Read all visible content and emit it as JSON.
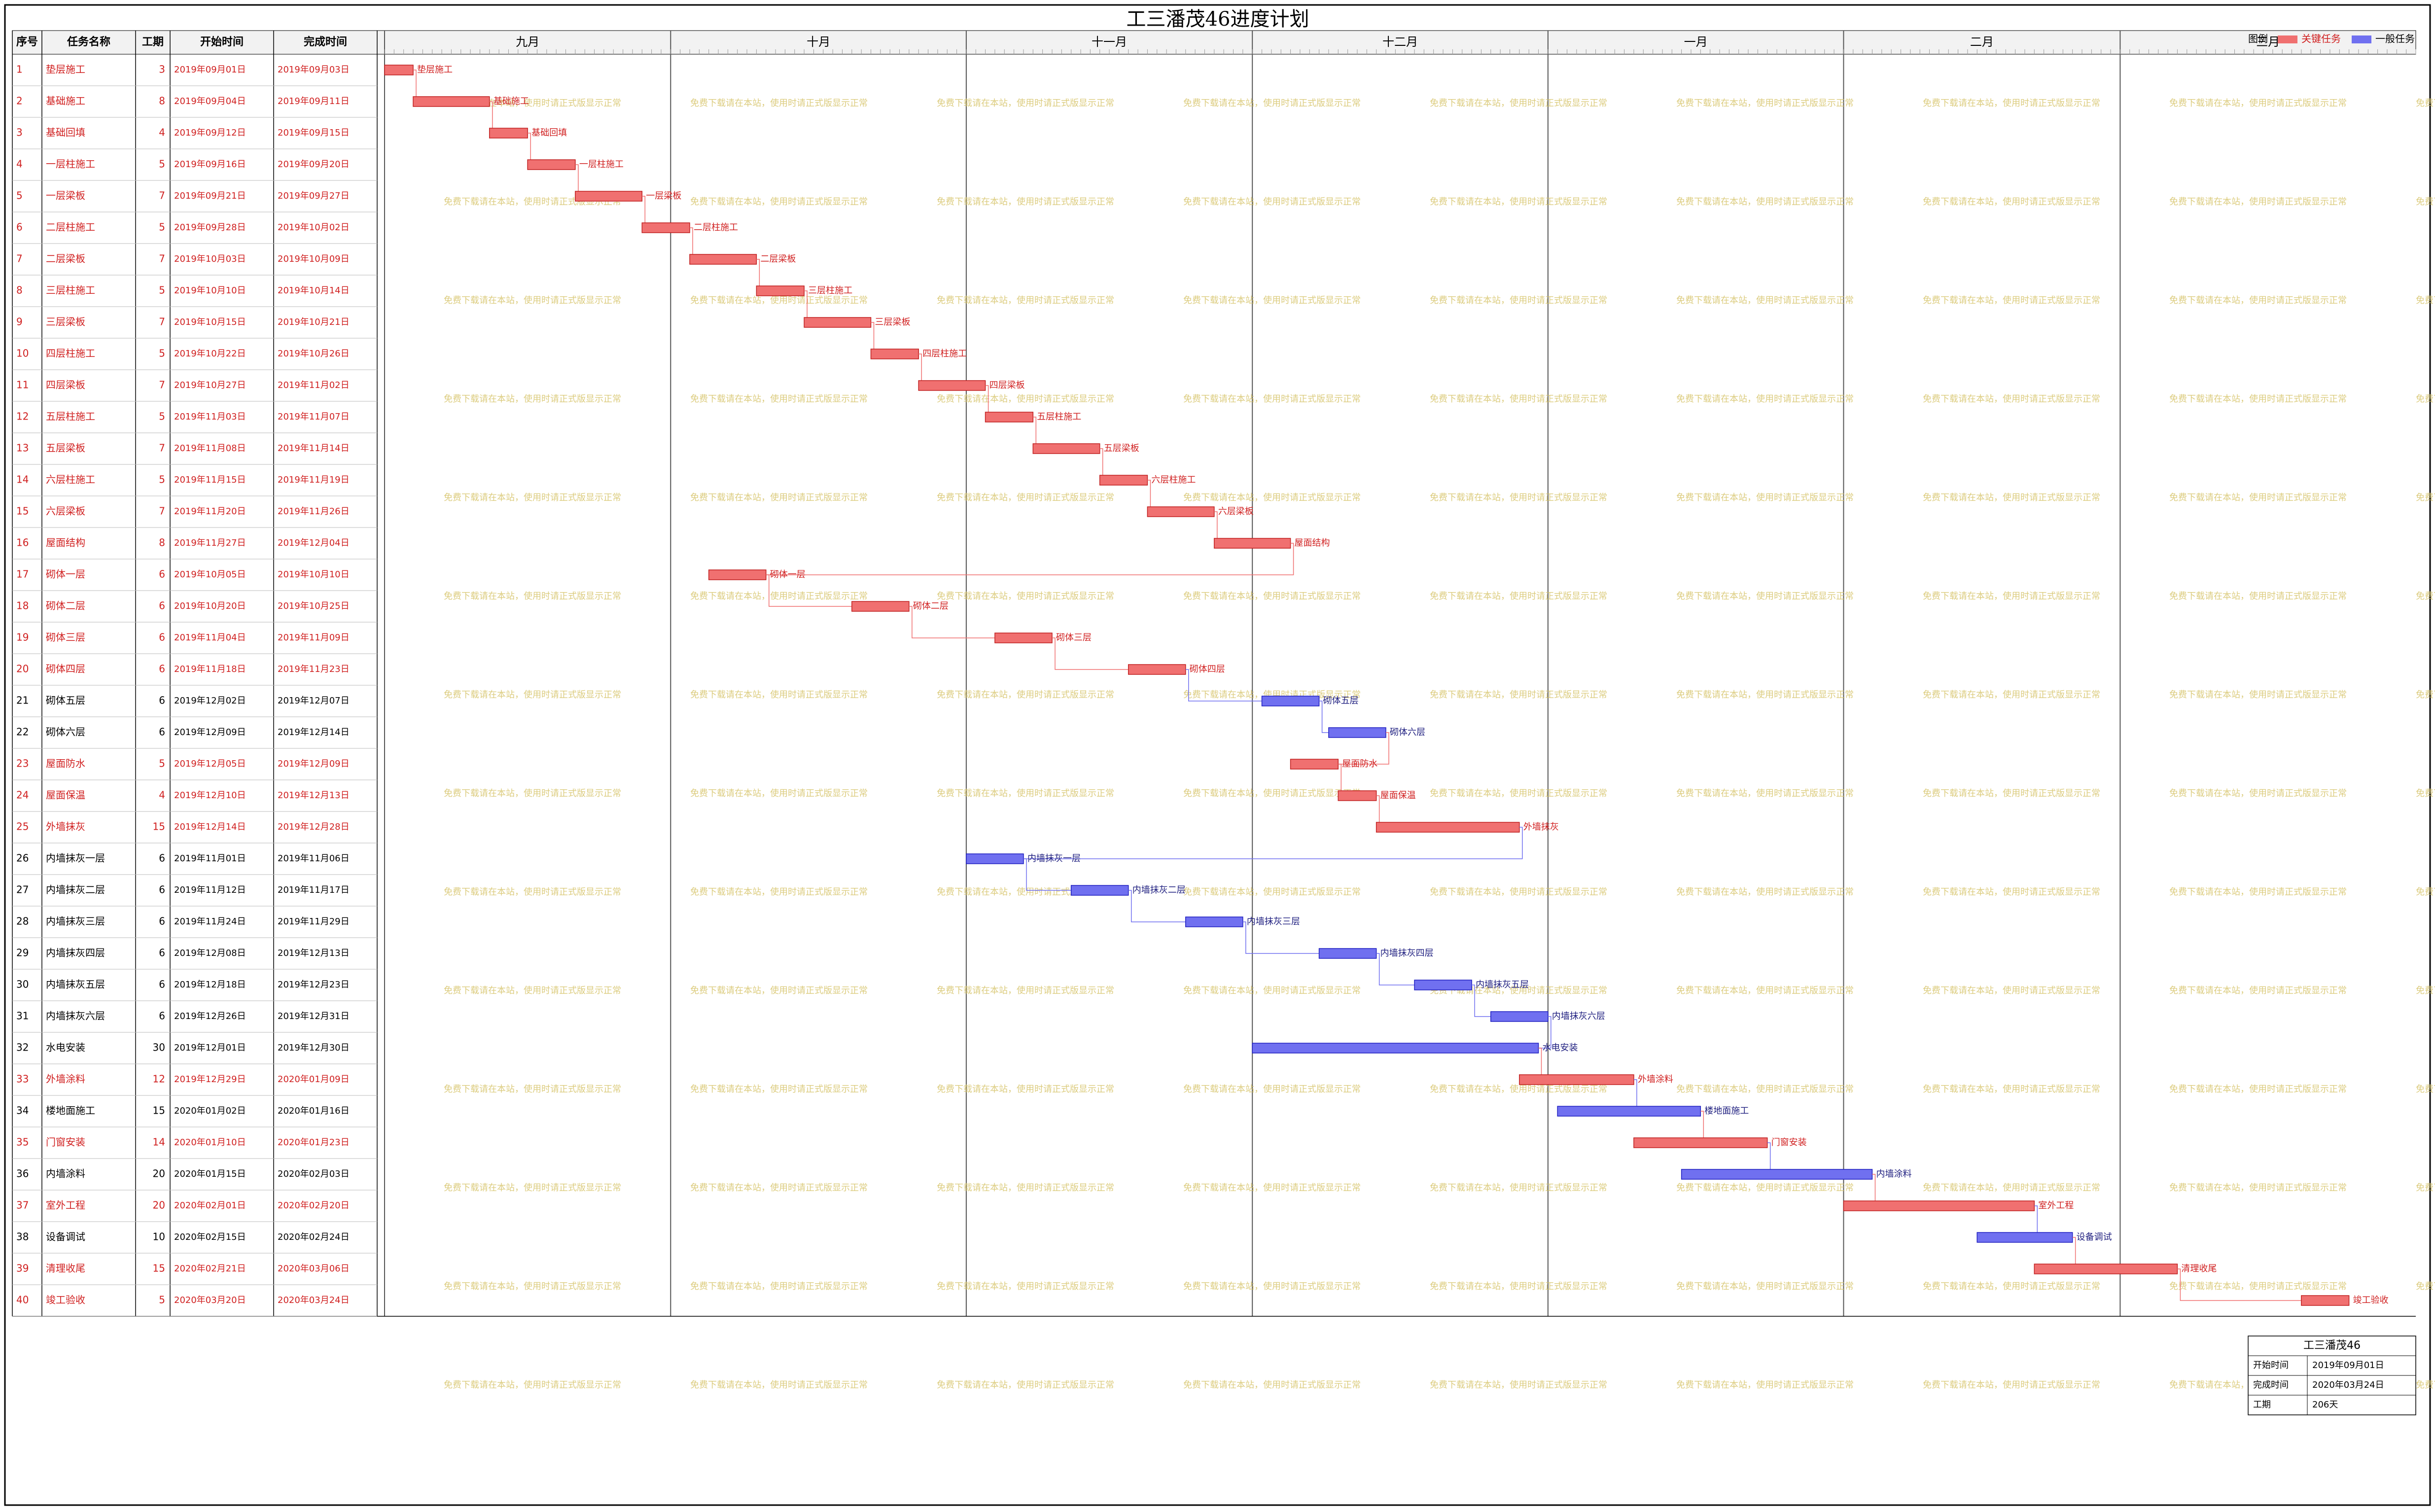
{
  "header": {
    "title": "工三潘茂46进度计划"
  },
  "table": {
    "columns": [
      "序号",
      "任务名称",
      "工期",
      "开始时间",
      "完成时间"
    ]
  },
  "months": [
    "九月",
    "十月",
    "十一月",
    "十二月",
    "一月",
    "二月",
    "三月"
  ],
  "tasks": [
    {
      "id": 1,
      "name": "垫层施工",
      "duration": 3,
      "start": "2019年09月01日",
      "end": "2019年09月03日",
      "critical": true
    },
    {
      "id": 2,
      "name": "基础施工",
      "duration": 8,
      "start": "2019年09月04日",
      "end": "2019年09月11日",
      "critical": true
    },
    {
      "id": 3,
      "name": "基础回填",
      "duration": 4,
      "start": "2019年09月12日",
      "end": "2019年09月15日",
      "critical": true
    },
    {
      "id": 4,
      "name": "一层柱施工",
      "duration": 5,
      "start": "2019年09月16日",
      "end": "2019年09月20日",
      "critical": true
    },
    {
      "id": 5,
      "name": "一层梁板",
      "duration": 7,
      "start": "2019年09月21日",
      "end": "2019年09月27日",
      "critical": true
    },
    {
      "id": 6,
      "name": "二层柱施工",
      "duration": 5,
      "start": "2019年09月28日",
      "end": "2019年10月02日",
      "critical": true
    },
    {
      "id": 7,
      "name": "二层梁板",
      "duration": 7,
      "start": "2019年10月03日",
      "end": "2019年10月09日",
      "critical": true
    },
    {
      "id": 8,
      "name": "三层柱施工",
      "duration": 5,
      "start": "2019年10月10日",
      "end": "2019年10月14日",
      "critical": true
    },
    {
      "id": 9,
      "name": "三层梁板",
      "duration": 7,
      "start": "2019年10月15日",
      "end": "2019年10月21日",
      "critical": true
    },
    {
      "id": 10,
      "name": "四层柱施工",
      "duration": 5,
      "start": "2019年10月22日",
      "end": "2019年10月26日",
      "critical": true
    },
    {
      "id": 11,
      "name": "四层梁板",
      "duration": 7,
      "start": "2019年10月27日",
      "end": "2019年11月02日",
      "critical": true
    },
    {
      "id": 12,
      "name": "五层柱施工",
      "duration": 5,
      "start": "2019年11月03日",
      "end": "2019年11月07日",
      "critical": true
    },
    {
      "id": 13,
      "name": "五层梁板",
      "duration": 7,
      "start": "2019年11月08日",
      "end": "2019年11月14日",
      "critical": true
    },
    {
      "id": 14,
      "name": "六层柱施工",
      "duration": 5,
      "start": "2019年11月15日",
      "end": "2019年11月19日",
      "critical": true
    },
    {
      "id": 15,
      "name": "六层梁板",
      "duration": 7,
      "start": "2019年11月20日",
      "end": "2019年11月26日",
      "critical": true
    },
    {
      "id": 16,
      "name": "屋面结构",
      "duration": 8,
      "start": "2019年11月27日",
      "end": "2019年12月04日",
      "critical": true
    },
    {
      "id": 17,
      "name": "砌体一层",
      "duration": 6,
      "start": "2019年10月05日",
      "end": "2019年10月10日",
      "critical": true
    },
    {
      "id": 18,
      "name": "砌体二层",
      "duration": 6,
      "start": "2019年10月20日",
      "end": "2019年10月25日",
      "critical": true
    },
    {
      "id": 19,
      "name": "砌体三层",
      "duration": 6,
      "start": "2019年11月04日",
      "end": "2019年11月09日",
      "critical": true
    },
    {
      "id": 20,
      "name": "砌体四层",
      "duration": 6,
      "start": "2019年11月18日",
      "end": "2019年11月23日",
      "critical": true
    },
    {
      "id": 21,
      "name": "砌体五层",
      "duration": 6,
      "start": "2019年12月02日",
      "end": "2019年12月07日",
      "critical": false
    },
    {
      "id": 22,
      "name": "砌体六层",
      "duration": 6,
      "start": "2019年12月09日",
      "end": "2019年12月14日",
      "critical": false
    },
    {
      "id": 23,
      "name": "屋面防水",
      "duration": 5,
      "start": "2019年12月05日",
      "end": "2019年12月09日",
      "critical": true
    },
    {
      "id": 24,
      "name": "屋面保温",
      "duration": 4,
      "start": "2019年12月10日",
      "end": "2019年12月13日",
      "critical": true
    },
    {
      "id": 25,
      "name": "外墙抹灰",
      "duration": 15,
      "start": "2019年12月14日",
      "end": "2019年12月28日",
      "critical": true
    },
    {
      "id": 26,
      "name": "内墙抹灰一层",
      "duration": 6,
      "start": "2019年11月01日",
      "end": "2019年11月06日",
      "critical": false
    },
    {
      "id": 27,
      "name": "内墙抹灰二层",
      "duration": 6,
      "start": "2019年11月12日",
      "end": "2019年11月17日",
      "critical": false
    },
    {
      "id": 28,
      "name": "内墙抹灰三层",
      "duration": 6,
      "start": "2019年11月24日",
      "end": "2019年11月29日",
      "critical": false
    },
    {
      "id": 29,
      "name": "内墙抹灰四层",
      "duration": 6,
      "start": "2019年12月08日",
      "end": "2019年12月13日",
      "critical": false
    },
    {
      "id": 30,
      "name": "内墙抹灰五层",
      "duration": 6,
      "start": "2019年12月18日",
      "end": "2019年12月23日",
      "critical": false
    },
    {
      "id": 31,
      "name": "内墙抹灰六层",
      "duration": 6,
      "start": "2019年12月26日",
      "end": "2019年12月31日",
      "critical": false
    },
    {
      "id": 32,
      "name": "水电安装",
      "duration": 30,
      "start": "2019年12月01日",
      "end": "2019年12月30日",
      "critical": false
    },
    {
      "id": 33,
      "name": "外墙涂料",
      "duration": 12,
      "start": "2019年12月29日",
      "end": "2020年01月09日",
      "critical": true
    },
    {
      "id": 34,
      "name": "楼地面施工",
      "duration": 15,
      "start": "2020年01月02日",
      "end": "2020年01月16日",
      "critical": false
    },
    {
      "id": 35,
      "name": "门窗安装",
      "duration": 14,
      "start": "2020年01月10日",
      "end": "2020年01月23日",
      "critical": true
    },
    {
      "id": 36,
      "name": "内墙涂料",
      "duration": 20,
      "start": "2020年01月15日",
      "end": "2020年02月03日",
      "critical": false
    },
    {
      "id": 37,
      "name": "室外工程",
      "duration": 20,
      "start": "2020年02月01日",
      "end": "2020年02月20日",
      "critical": true
    },
    {
      "id": 38,
      "name": "设备调试",
      "duration": 10,
      "start": "2020年02月15日",
      "end": "2020年02月24日",
      "critical": false
    },
    {
      "id": 39,
      "name": "清理收尾",
      "duration": 15,
      "start": "2020年02月21日",
      "end": "2020年03月06日",
      "critical": true
    },
    {
      "id": 40,
      "name": "竣工验收",
      "duration": 5,
      "start": "2020年03月20日",
      "end": "2020年03月24日",
      "critical": true
    }
  ],
  "legend": {
    "title": "图例",
    "critical": {
      "label": "关键任务",
      "color": "#f07070"
    },
    "normal": {
      "label": "一般任务",
      "color": "#7070f0"
    }
  },
  "watermark": "免费下载请在本站，使用时请正式版显示正常",
  "footer": {
    "project": "工三潘茂46",
    "rows": [
      {
        "label": "开始时间",
        "value": "2019年09月01日"
      },
      {
        "label": "完成时间",
        "value": "2020年03月24日"
      },
      {
        "label": "工期",
        "value": "206天"
      }
    ]
  }
}
